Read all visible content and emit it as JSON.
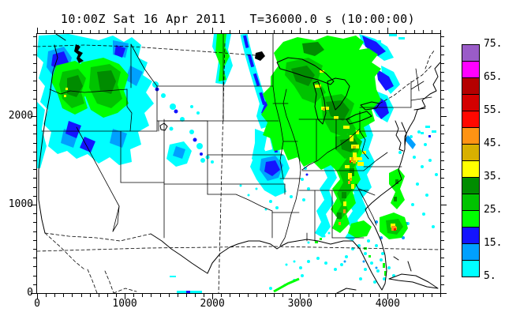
{
  "title": {
    "left": "10:00Z Sat 16 Apr 2011",
    "right": "T=36000.0 s (10:00:00)"
  },
  "axes": {
    "x_tick_labels": [
      "0",
      "1000",
      "2000",
      "3000",
      "4000"
    ],
    "y_tick_labels": [
      "0",
      "1000",
      "2000"
    ]
  },
  "colorbar": {
    "labels": [
      "75.",
      "65.",
      "55.",
      "45.",
      "35.",
      "25.",
      "15.",
      "5."
    ],
    "cells": [
      {
        "level": 70,
        "range": "70-75",
        "color": "#9a5cc8"
      },
      {
        "level": 65,
        "range": "65-70",
        "color": "#ff00ff"
      },
      {
        "level": 60,
        "range": "60-65",
        "color": "#b40000"
      },
      {
        "level": 55,
        "range": "55-60",
        "color": "#d40000"
      },
      {
        "level": 50,
        "range": "50-55",
        "color": "#ff0800"
      },
      {
        "level": 45,
        "range": "45-50",
        "color": "#ff9314"
      },
      {
        "level": 40,
        "range": "40-45",
        "color": "#d8b000"
      },
      {
        "level": 35,
        "range": "35-40",
        "color": "#ffff00"
      },
      {
        "level": 30,
        "range": "30-35",
        "color": "#008c00"
      },
      {
        "level": 25,
        "range": "25-30",
        "color": "#00c300"
      },
      {
        "level": 20,
        "range": "20-25",
        "color": "#00ff00"
      },
      {
        "level": 15,
        "range": "15-20",
        "color": "#1414ff"
      },
      {
        "level": 10,
        "range": "10-15",
        "color": "#00a0ff"
      },
      {
        "level": 5,
        "range": "5-10",
        "color": "#00ffff"
      }
    ]
  },
  "chart_data": {
    "type": "heatmap",
    "title": "10:00Z Sat 16 Apr 2011   T=36000.0 s (10:00:00)",
    "xlabel": "",
    "ylabel": "",
    "xlim": [
      0,
      4600
    ],
    "ylim": [
      0,
      2930
    ],
    "x_ticks": [
      0,
      1000,
      2000,
      3000,
      4000
    ],
    "y_ticks": [
      0,
      1000,
      2000
    ],
    "minor_tick_interval": 100,
    "grid": false,
    "legend_position": "right",
    "levels": [
      5,
      10,
      15,
      20,
      25,
      30,
      35,
      40,
      45,
      50,
      55,
      60,
      65,
      70,
      75
    ],
    "palette_low_to_high": [
      "#00ffff",
      "#00a0ff",
      "#1414ff",
      "#00ff00",
      "#00c300",
      "#008c00",
      "#ffff00",
      "#d8b000",
      "#ff9314",
      "#ff0800",
      "#d40000",
      "#b40000",
      "#ff00ff",
      "#9a5cc8"
    ],
    "basemap": "CONUS with state borders, dashed national borders and lat/lon lines",
    "regions": [
      {
        "name": "Pacific Northwest (WA/OR/ID)",
        "x_km": [
          0,
          1600
        ],
        "y_km": [
          1400,
          2930
        ],
        "max_level": 35,
        "dominant_levels": [
          5,
          15,
          20,
          25,
          30
        ]
      },
      {
        "name": "California coastal strip",
        "x_km": [
          0,
          250
        ],
        "y_km": [
          1400,
          2200
        ],
        "max_level": 10,
        "dominant_levels": [
          5
        ]
      },
      {
        "name": "Intermountain scattered showers",
        "x_km": [
          1200,
          2100
        ],
        "y_km": [
          1400,
          2400
        ],
        "max_level": 25,
        "dominant_levels": [
          5,
          15
        ]
      },
      {
        "name": "Upper Midwest / Great Lakes comma",
        "x_km": [
          2500,
          4000
        ],
        "y_km": [
          1600,
          2930
        ],
        "max_level": 45,
        "dominant_levels": [
          20,
          25,
          30,
          35
        ]
      },
      {
        "name": "Minnesota curved band",
        "x_km": [
          2300,
          2750
        ],
        "y_km": [
          1500,
          2930
        ],
        "max_level": 20,
        "dominant_levels": [
          5,
          15
        ]
      },
      {
        "name": "Missouri blue blob",
        "x_km": [
          2450,
          2900
        ],
        "y_km": [
          1150,
          1600
        ],
        "max_level": 20,
        "dominant_levels": [
          5,
          10,
          15
        ]
      },
      {
        "name": "Ohio Valley / Appalachians yellow cluster",
        "x_km": [
          3400,
          3800
        ],
        "y_km": [
          1400,
          1700
        ],
        "max_level": 45,
        "dominant_levels": [
          25,
          30,
          35
        ]
      },
      {
        "name": "Mid-Atlantic / Southeast squall line",
        "x_km": [
          3350,
          3800
        ],
        "y_km": [
          700,
          2000
        ],
        "max_level": 50,
        "dominant_levels": [
          20,
          25,
          35,
          45
        ]
      },
      {
        "name": "Offshore Carolina/Georgia cell",
        "x_km": [
          3900,
          4250
        ],
        "y_km": [
          600,
          950
        ],
        "max_level": 50,
        "dominant_levels": [
          25,
          35,
          45
        ]
      },
      {
        "name": "Florida / Gulf scattered",
        "x_km": [
          2800,
          4300
        ],
        "y_km": [
          0,
          700
        ],
        "max_level": 20,
        "dominant_levels": [
          5
        ]
      },
      {
        "name": "Atlantic offshore specks",
        "x_km": [
          4100,
          4600
        ],
        "y_km": [
          700,
          2000
        ],
        "max_level": 15,
        "dominant_levels": [
          5,
          10
        ]
      }
    ]
  }
}
